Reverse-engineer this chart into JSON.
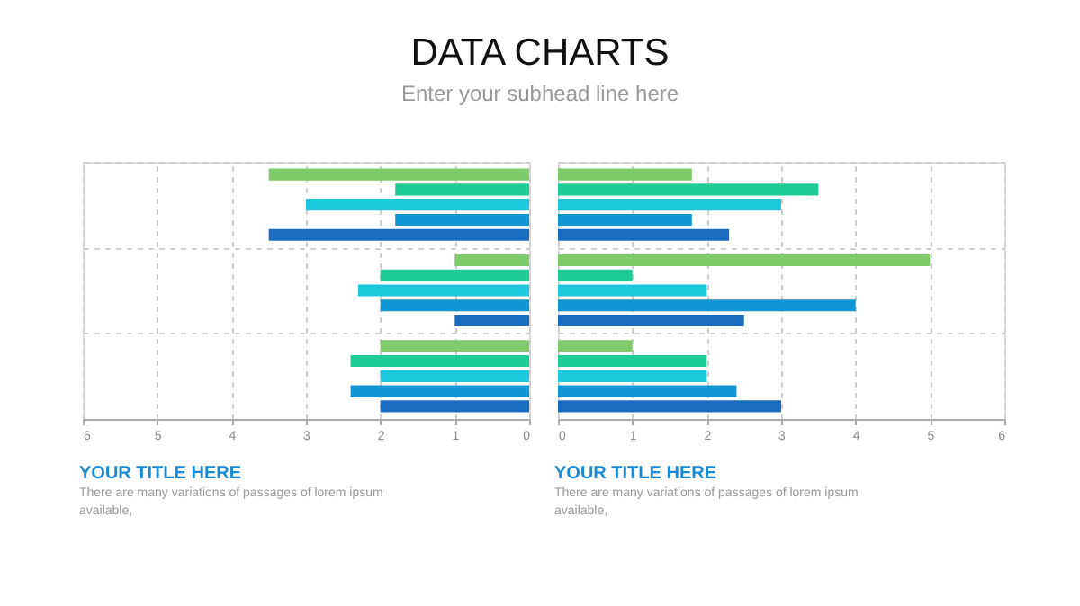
{
  "chart_data": [
    {
      "type": "other",
      "title": "DATA CHARTS",
      "subtitle": "Enter your subhead line here"
    },
    {
      "type": "bar",
      "orientation": "horizontal",
      "title": "YOUR TITLE HERE",
      "annotations": [
        "There are many variations of passages  of lorem ipsum available,"
      ],
      "categories": [
        null,
        null,
        null
      ],
      "series": [
        {
          "color": "#7dcb6a",
          "values": [
            3.5,
            1,
            2
          ]
        },
        {
          "color": "#1fcc96",
          "values": [
            1.8,
            2,
            2.4
          ]
        },
        {
          "color": "#1dc8dc",
          "values": [
            3,
            2.3,
            2
          ]
        },
        {
          "color": "#1196d4",
          "values": [
            1.8,
            2,
            2.4
          ]
        },
        {
          "color": "#1a6cc0",
          "values": [
            3.5,
            1,
            2
          ]
        }
      ],
      "xlim": [
        6,
        0
      ],
      "xticks": [
        6,
        5,
        4,
        3,
        2,
        1,
        0
      ],
      "grid": true,
      "tick_labels": "x"
    },
    {
      "type": "bar",
      "orientation": "horizontal",
      "title": "YOUR TITLE HERE",
      "annotations": [
        "There are many variations of passages  of lorem ipsum available,"
      ],
      "categories": [
        null,
        null,
        null
      ],
      "series": [
        {
          "color": "#7dcb6a",
          "values": [
            1.8,
            5,
            1
          ]
        },
        {
          "color": "#1fcc96",
          "values": [
            3.5,
            1,
            2
          ]
        },
        {
          "color": "#1dc8dc",
          "values": [
            3,
            2,
            2
          ]
        },
        {
          "color": "#1196d4",
          "values": [
            1.8,
            4,
            2.4
          ]
        },
        {
          "color": "#1a6cc0",
          "values": [
            2.3,
            2.5,
            3
          ]
        }
      ],
      "xlim": [
        0,
        6
      ],
      "xticks": [
        0,
        1,
        2,
        3,
        4,
        5,
        6
      ],
      "grid": true,
      "tick_labels": "x"
    }
  ]
}
